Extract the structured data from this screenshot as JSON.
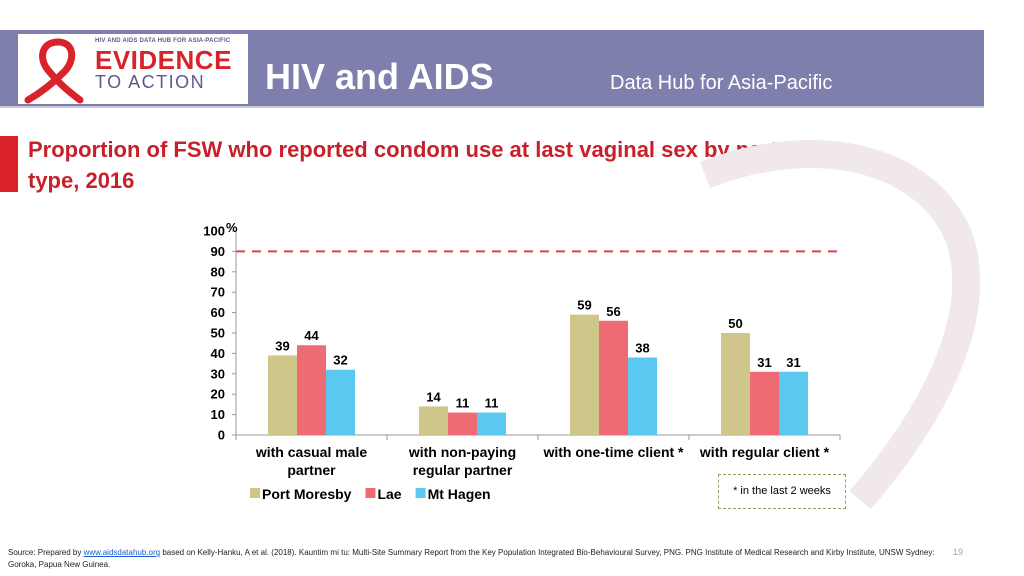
{
  "header": {
    "logo_small": "HIV AND AIDS DATA HUB FOR ASIA-PACIFIC",
    "logo_evidence": "EVIDENCE",
    "logo_action": "TO ACTION",
    "title": "HIV and AIDS",
    "subtitle": "Data Hub for Asia-Pacific"
  },
  "slide_title": "Proportion of FSW who reported condom use at last vaginal sex by partner type, 2016",
  "note": "* in the last 2 weeks",
  "source": {
    "prefix": "Source: Prepared by ",
    "link": "www.aidsdatahub.org",
    "suffix": " based on Kelly-Hanku, A et al. (2018). Kauntim mi tu: Multi-Site Summary Report from the Key Population Integrated Bio-Behavioural Survey, PNG. PNG Institute of Medical Research and Kirby Institute, UNSW Sydney: Goroka, Papua New Guinea."
  },
  "page_number": "19",
  "colors": {
    "header_bg": "#7f7fae",
    "title_red": "#c8202a",
    "port_moresby": "#cfc68a",
    "lae": "#ef6b73",
    "mt_hagen": "#5bc8f0",
    "target_line": "#e04050"
  },
  "chart_data": {
    "type": "bar",
    "ylabel": "%",
    "ylim": [
      0,
      100
    ],
    "yticks": [
      0,
      10,
      20,
      30,
      40,
      50,
      60,
      70,
      80,
      90,
      100
    ],
    "reference_line": 90,
    "legend_position": "bottom-left",
    "categories": [
      [
        "with casual male",
        "partner"
      ],
      [
        "with non-paying",
        "regular partner"
      ],
      [
        "with one-time client *"
      ],
      [
        "with regular client *"
      ]
    ],
    "series": [
      {
        "name": "Port Moresby",
        "color": "#cfc68a",
        "values": [
          39,
          14,
          59,
          50
        ]
      },
      {
        "name": "Lae",
        "color": "#ef6b73",
        "values": [
          44,
          11,
          56,
          31
        ]
      },
      {
        "name": "Mt Hagen",
        "color": "#5bc8f0",
        "values": [
          32,
          11,
          38,
          31
        ]
      }
    ]
  }
}
